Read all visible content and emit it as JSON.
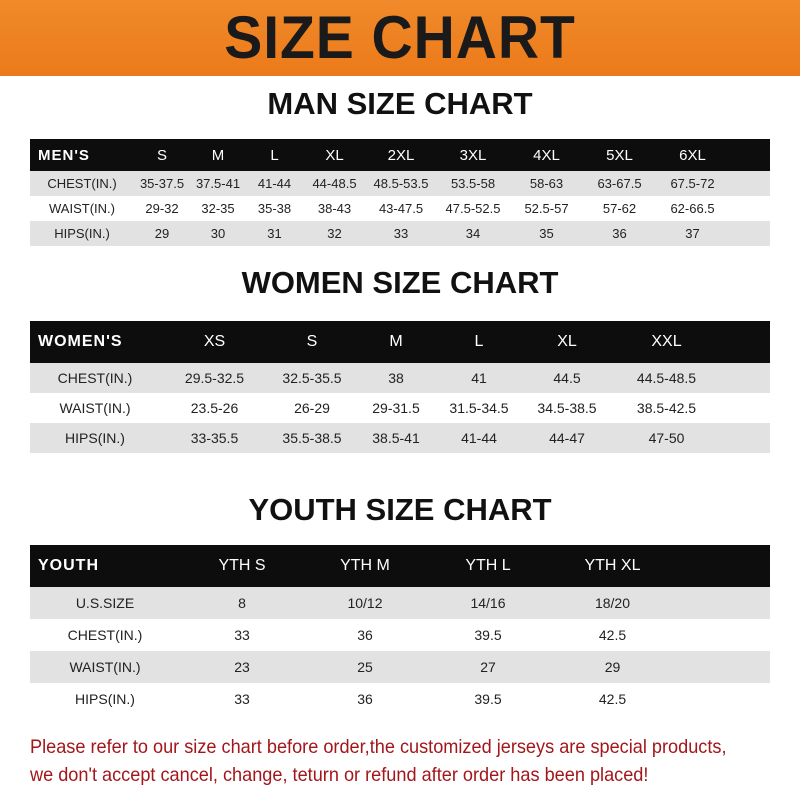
{
  "title": "SIZE CHART",
  "men": {
    "title": "MAN SIZE CHART",
    "header": [
      "MEN'S",
      "S",
      "M",
      "L",
      "XL",
      "2XL",
      "3XL",
      "4XL",
      "5XL",
      "6XL"
    ],
    "rows": [
      [
        "CHEST(IN.)",
        "35-37.5",
        "37.5-41",
        "41-44",
        "44-48.5",
        "48.5-53.5",
        "53.5-58",
        "58-63",
        "63-67.5",
        "67.5-72"
      ],
      [
        "WAIST(IN.)",
        "29-32",
        "32-35",
        "35-38",
        "38-43",
        "43-47.5",
        "47.5-52.5",
        "52.5-57",
        "57-62",
        "62-66.5"
      ],
      [
        "HIPS(IN.)",
        "29",
        "30",
        "31",
        "32",
        "33",
        "34",
        "35",
        "36",
        "37"
      ]
    ]
  },
  "women": {
    "title": "WOMEN SIZE CHART",
    "header": [
      "WOMEN'S",
      "XS",
      "S",
      "M",
      "L",
      "XL",
      "XXL"
    ],
    "rows": [
      [
        "CHEST(IN.)",
        "29.5-32.5",
        "32.5-35.5",
        "38",
        "41",
        "44.5",
        "44.5-48.5"
      ],
      [
        "WAIST(IN.)",
        "23.5-26",
        "26-29",
        "29-31.5",
        "31.5-34.5",
        "34.5-38.5",
        "38.5-42.5"
      ],
      [
        "HIPS(IN.)",
        "33-35.5",
        "35.5-38.5",
        "38.5-41",
        "41-44",
        "44-47",
        "47-50"
      ]
    ]
  },
  "youth": {
    "title": "YOUTH SIZE CHART",
    "header": [
      "YOUTH",
      "YTH S",
      "YTH M",
      "YTH L",
      "YTH XL"
    ],
    "rows": [
      [
        "U.S.SIZE",
        "8",
        "10/12",
        "14/16",
        "18/20"
      ],
      [
        "CHEST(IN.)",
        "33",
        "36",
        "39.5",
        "42.5"
      ],
      [
        "WAIST(IN.)",
        "23",
        "25",
        "27",
        "29"
      ],
      [
        "HIPS(IN.)",
        "33",
        "36",
        "39.5",
        "42.5"
      ]
    ]
  },
  "note": [
    "Please refer to our size chart before order,the customized jerseys are special products,",
    "we don't accept cancel, change, teturn or refund after order has been placed!"
  ],
  "colors": {
    "banner": "#ec7a1a",
    "header_row": "#0d0d0d",
    "stripe": "#e2e2e2",
    "note": "#a3161b"
  }
}
